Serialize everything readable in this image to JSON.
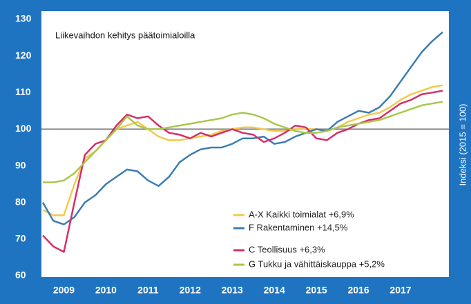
{
  "chart_data": {
    "type": "line",
    "title": "Liikevaihdon kehitys päätoimialoilla",
    "y_label": "Indeksi (2015 = 100)",
    "x": [
      2009,
      2009.25,
      2009.5,
      2009.75,
      2010,
      2010.25,
      2010.5,
      2010.75,
      2011,
      2011.25,
      2011.5,
      2011.75,
      2012,
      2012.25,
      2012.5,
      2012.75,
      2013,
      2013.25,
      2013.5,
      2013.75,
      2014,
      2014.25,
      2014.5,
      2014.75,
      2015,
      2015.25,
      2015.5,
      2015.75,
      2016,
      2016.25,
      2016.5,
      2016.75,
      2017,
      2017.25,
      2017.5,
      2017.75,
      2018,
      2018.25,
      2018.5
    ],
    "series": [
      {
        "name": "A-X Kaikki toimialat +6,9%",
        "color": "#f3c94a",
        "values": [
          78,
          76.5,
          76.5,
          85,
          92,
          94,
          97,
          100,
          101,
          102,
          100,
          98,
          97,
          97,
          97.5,
          98,
          98.5,
          99.5,
          100,
          100.5,
          100.5,
          100,
          99.5,
          99.5,
          100,
          100,
          100,
          99.5,
          100.5,
          102,
          103,
          104,
          104.5,
          106,
          108,
          109.5,
          110.5,
          111.5,
          112
        ]
      },
      {
        "name": "F Rakentaminen +14,5%",
        "color": "#3a7db3",
        "values": [
          80,
          75,
          74,
          76,
          80,
          82,
          85,
          87,
          89,
          88.5,
          86,
          84.5,
          87,
          91,
          93,
          94.5,
          95,
          95,
          96,
          97.5,
          97.5,
          98,
          96,
          96.5,
          98,
          99,
          100,
          99.5,
          102,
          103.5,
          105,
          104.5,
          106,
          109,
          113,
          117,
          121,
          124,
          126.5
        ]
      },
      {
        "name": "C Teollisuus +6,3%",
        "color": "#d42e6a",
        "values": [
          71,
          68,
          66.5,
          80,
          93,
          96,
          97,
          101,
          104,
          103,
          103.5,
          101,
          99,
          98.5,
          97.5,
          99,
          98,
          99,
          100,
          99,
          98.5,
          96.5,
          97.5,
          99,
          101,
          100.5,
          97.5,
          97,
          99,
          100,
          101.5,
          102.5,
          103,
          105,
          107,
          108,
          109.5,
          110,
          110.5
        ]
      },
      {
        "name": "G Tukku ja vähittäiskauppa +5,2%",
        "color": "#a9c74c",
        "values": [
          85.5,
          85.5,
          86,
          88,
          91,
          94,
          97,
          100,
          103.5,
          101,
          100,
          100,
          100.5,
          101,
          101.5,
          102,
          102.5,
          103,
          104,
          104.5,
          104,
          103,
          101.5,
          100.5,
          99.5,
          99,
          99,
          99.5,
          100.5,
          101,
          101.5,
          102,
          102.5,
          103.5,
          104.5,
          105.5,
          106.5,
          107,
          107.5
        ]
      }
    ],
    "xlim": [
      2009,
      2018.55
    ],
    "xticks": [
      {
        "value": 2009.5,
        "label": "2009"
      },
      {
        "value": 2010.5,
        "label": "2010"
      },
      {
        "value": 2011.5,
        "label": "2011"
      },
      {
        "value": 2012.5,
        "label": "2012"
      },
      {
        "value": 2013.5,
        "label": "2013"
      },
      {
        "value": 2014.5,
        "label": "2014"
      },
      {
        "value": 2015.5,
        "label": "2015"
      },
      {
        "value": 2016.5,
        "label": "2016"
      },
      {
        "value": 2017.5,
        "label": "2017"
      }
    ],
    "ylim": [
      60,
      130
    ],
    "yticks": [
      60,
      70,
      80,
      90,
      100,
      110,
      120,
      130
    ],
    "reference_line": 100,
    "legend": "lower right"
  }
}
